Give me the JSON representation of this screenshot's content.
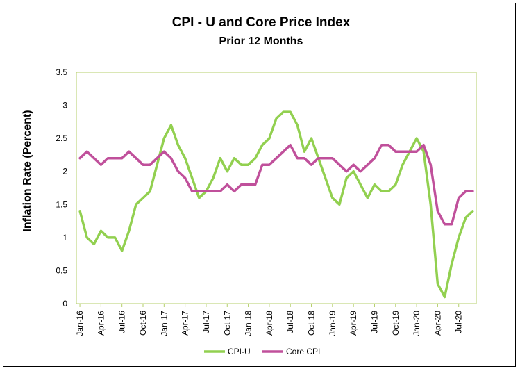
{
  "chart_data": {
    "type": "line",
    "title": "CPI - U and Core Price Index",
    "subtitle": "Prior 12 Months",
    "xlabel": "",
    "ylabel": "Inflation Rate (Percent)",
    "ylim": [
      0,
      3.5
    ],
    "yticks": [
      "0",
      "0.5",
      "1",
      "1.5",
      "2",
      "2.5",
      "3",
      "3.5"
    ],
    "xtick_labels": [
      "Jan-16",
      "Apr-16",
      "Jul-16",
      "Oct-16",
      "Jan-17",
      "Apr-17",
      "Jul-17",
      "Oct-17",
      "Jan-18",
      "Apr-18",
      "Jul-18",
      "Oct-18",
      "Jan-19",
      "Apr-19",
      "Jul-19",
      "Oct-19",
      "Jan-20",
      "Apr-20",
      "Jul-20"
    ],
    "x": [
      "Jan-16",
      "Feb-16",
      "Mar-16",
      "Apr-16",
      "May-16",
      "Jun-16",
      "Jul-16",
      "Aug-16",
      "Sep-16",
      "Oct-16",
      "Nov-16",
      "Dec-16",
      "Jan-17",
      "Feb-17",
      "Mar-17",
      "Apr-17",
      "May-17",
      "Jun-17",
      "Jul-17",
      "Aug-17",
      "Sep-17",
      "Oct-17",
      "Nov-17",
      "Dec-17",
      "Jan-18",
      "Feb-18",
      "Mar-18",
      "Apr-18",
      "May-18",
      "Jun-18",
      "Jul-18",
      "Aug-18",
      "Sep-18",
      "Oct-18",
      "Nov-18",
      "Dec-18",
      "Jan-19",
      "Feb-19",
      "Mar-19",
      "Apr-19",
      "May-19",
      "Jun-19",
      "Jul-19",
      "Aug-19",
      "Sep-19",
      "Oct-19",
      "Nov-19",
      "Dec-19",
      "Jan-20",
      "Feb-20",
      "Mar-20",
      "Apr-20",
      "May-20",
      "Jun-20",
      "Jul-20",
      "Aug-20",
      "Sep-20"
    ],
    "series": [
      {
        "name": "CPI-U",
        "color": "#92D050",
        "values": [
          1.4,
          1.0,
          0.9,
          1.1,
          1.0,
          1.0,
          0.8,
          1.1,
          1.5,
          1.6,
          1.7,
          2.1,
          2.5,
          2.7,
          2.4,
          2.2,
          1.9,
          1.6,
          1.7,
          1.9,
          2.2,
          2.0,
          2.2,
          2.1,
          2.1,
          2.2,
          2.4,
          2.5,
          2.8,
          2.9,
          2.9,
          2.7,
          2.3,
          2.5,
          2.2,
          1.9,
          1.6,
          1.5,
          1.9,
          2.0,
          1.8,
          1.6,
          1.8,
          1.7,
          1.7,
          1.8,
          2.1,
          2.3,
          2.5,
          2.3,
          1.5,
          0.3,
          0.1,
          0.6,
          1.0,
          1.3,
          1.4
        ]
      },
      {
        "name": "Core CPI",
        "color": "#C0509B",
        "values": [
          2.2,
          2.3,
          2.2,
          2.1,
          2.2,
          2.2,
          2.2,
          2.3,
          2.2,
          2.1,
          2.1,
          2.2,
          2.3,
          2.2,
          2.0,
          1.9,
          1.7,
          1.7,
          1.7,
          1.7,
          1.7,
          1.8,
          1.7,
          1.8,
          1.8,
          1.8,
          2.1,
          2.1,
          2.2,
          2.3,
          2.4,
          2.2,
          2.2,
          2.1,
          2.2,
          2.2,
          2.2,
          2.1,
          2.0,
          2.1,
          2.0,
          2.1,
          2.2,
          2.4,
          2.4,
          2.3,
          2.3,
          2.3,
          2.3,
          2.4,
          2.1,
          1.4,
          1.2,
          1.2,
          1.6,
          1.7,
          1.7
        ]
      }
    ],
    "grid": false,
    "legend_position": "bottom"
  }
}
